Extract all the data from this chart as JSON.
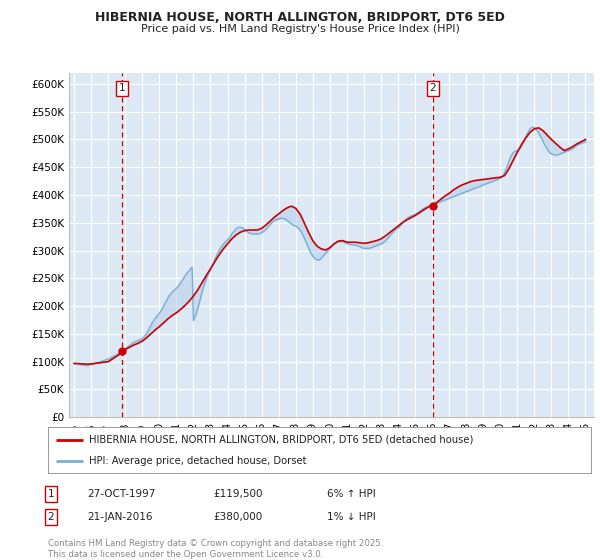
{
  "title1": "HIBERNIA HOUSE, NORTH ALLINGTON, BRIDPORT, DT6 5ED",
  "title2": "Price paid vs. HM Land Registry's House Price Index (HPI)",
  "ylim": [
    0,
    620000
  ],
  "yticks": [
    0,
    50000,
    100000,
    150000,
    200000,
    250000,
    300000,
    350000,
    400000,
    450000,
    500000,
    550000,
    600000
  ],
  "ytick_labels": [
    "£0",
    "£50K",
    "£100K",
    "£150K",
    "£200K",
    "£250K",
    "£300K",
    "£350K",
    "£400K",
    "£450K",
    "£500K",
    "£550K",
    "£600K"
  ],
  "xlim_start": 1994.7,
  "xlim_end": 2025.5,
  "plot_bg": "#dce9f5",
  "grid_color": "#ffffff",
  "red_line_color": "#cc0000",
  "blue_line_color": "#7bafd4",
  "fill_color": "#b8d0e8",
  "vline_color": "#cc0000",
  "marker1_x": 1997.82,
  "marker1_y": 119500,
  "marker2_x": 2016.05,
  "marker2_y": 380000,
  "annotation1": {
    "label": "1",
    "x": 1997.82,
    "date": "27-OCT-1997",
    "price": "£119,500",
    "hpi": "6% ↑ HPI"
  },
  "annotation2": {
    "label": "2",
    "x": 2016.05,
    "date": "21-JAN-2016",
    "price": "£380,000",
    "hpi": "1% ↓ HPI"
  },
  "legend_line1": "HIBERNIA HOUSE, NORTH ALLINGTON, BRIDPORT, DT6 5ED (detached house)",
  "legend_line2": "HPI: Average price, detached house, Dorset",
  "footer": "Contains HM Land Registry data © Crown copyright and database right 2025.\nThis data is licensed under the Open Government Licence v3.0.",
  "hpi_years": [
    1995.0,
    1995.08,
    1995.17,
    1995.25,
    1995.33,
    1995.42,
    1995.5,
    1995.58,
    1995.67,
    1995.75,
    1995.83,
    1995.92,
    1996.0,
    1996.08,
    1996.17,
    1996.25,
    1996.33,
    1996.42,
    1996.5,
    1996.58,
    1996.67,
    1996.75,
    1996.83,
    1996.92,
    1997.0,
    1997.08,
    1997.17,
    1997.25,
    1997.33,
    1997.42,
    1997.5,
    1997.58,
    1997.67,
    1997.75,
    1997.83,
    1997.92,
    1998.0,
    1998.08,
    1998.17,
    1998.25,
    1998.33,
    1998.42,
    1998.5,
    1998.58,
    1998.67,
    1998.75,
    1998.83,
    1998.92,
    1999.0,
    1999.08,
    1999.17,
    1999.25,
    1999.33,
    1999.42,
    1999.5,
    1999.58,
    1999.67,
    1999.75,
    1999.83,
    1999.92,
    2000.0,
    2000.08,
    2000.17,
    2000.25,
    2000.33,
    2000.42,
    2000.5,
    2000.58,
    2000.67,
    2000.75,
    2000.83,
    2000.92,
    2001.0,
    2001.08,
    2001.17,
    2001.25,
    2001.33,
    2001.42,
    2001.5,
    2001.58,
    2001.67,
    2001.75,
    2001.83,
    2001.92,
    2002.0,
    2002.08,
    2002.17,
    2002.25,
    2002.33,
    2002.42,
    2002.5,
    2002.58,
    2002.67,
    2002.75,
    2002.83,
    2002.92,
    2003.0,
    2003.08,
    2003.17,
    2003.25,
    2003.33,
    2003.42,
    2003.5,
    2003.58,
    2003.67,
    2003.75,
    2003.83,
    2003.92,
    2004.0,
    2004.08,
    2004.17,
    2004.25,
    2004.33,
    2004.42,
    2004.5,
    2004.58,
    2004.67,
    2004.75,
    2004.83,
    2004.92,
    2005.0,
    2005.08,
    2005.17,
    2005.25,
    2005.33,
    2005.42,
    2005.5,
    2005.58,
    2005.67,
    2005.75,
    2005.83,
    2005.92,
    2006.0,
    2006.08,
    2006.17,
    2006.25,
    2006.33,
    2006.42,
    2006.5,
    2006.58,
    2006.67,
    2006.75,
    2006.83,
    2006.92,
    2007.0,
    2007.08,
    2007.17,
    2007.25,
    2007.33,
    2007.42,
    2007.5,
    2007.58,
    2007.67,
    2007.75,
    2007.83,
    2007.92,
    2008.0,
    2008.08,
    2008.17,
    2008.25,
    2008.33,
    2008.42,
    2008.5,
    2008.58,
    2008.67,
    2008.75,
    2008.83,
    2008.92,
    2009.0,
    2009.08,
    2009.17,
    2009.25,
    2009.33,
    2009.42,
    2009.5,
    2009.58,
    2009.67,
    2009.75,
    2009.83,
    2009.92,
    2010.0,
    2010.08,
    2010.17,
    2010.25,
    2010.33,
    2010.42,
    2010.5,
    2010.58,
    2010.67,
    2010.75,
    2010.83,
    2010.92,
    2011.0,
    2011.08,
    2011.17,
    2011.25,
    2011.33,
    2011.42,
    2011.5,
    2011.58,
    2011.67,
    2011.75,
    2011.83,
    2011.92,
    2012.0,
    2012.08,
    2012.17,
    2012.25,
    2012.33,
    2012.42,
    2012.5,
    2012.58,
    2012.67,
    2012.75,
    2012.83,
    2012.92,
    2013.0,
    2013.08,
    2013.17,
    2013.25,
    2013.33,
    2013.42,
    2013.5,
    2013.58,
    2013.67,
    2013.75,
    2013.83,
    2013.92,
    2014.0,
    2014.08,
    2014.17,
    2014.25,
    2014.33,
    2014.42,
    2014.5,
    2014.58,
    2014.67,
    2014.75,
    2014.83,
    2014.92,
    2015.0,
    2015.08,
    2015.17,
    2015.25,
    2015.33,
    2015.42,
    2015.5,
    2015.58,
    2015.67,
    2015.75,
    2015.83,
    2015.92,
    2016.0,
    2016.08,
    2016.17,
    2016.25,
    2016.33,
    2016.42,
    2016.5,
    2016.58,
    2016.67,
    2016.75,
    2016.83,
    2016.92,
    2017.0,
    2017.08,
    2017.17,
    2017.25,
    2017.33,
    2017.42,
    2017.5,
    2017.58,
    2017.67,
    2017.75,
    2017.83,
    2017.92,
    2018.0,
    2018.08,
    2018.17,
    2018.25,
    2018.33,
    2018.42,
    2018.5,
    2018.58,
    2018.67,
    2018.75,
    2018.83,
    2018.92,
    2019.0,
    2019.08,
    2019.17,
    2019.25,
    2019.33,
    2019.42,
    2019.5,
    2019.58,
    2019.67,
    2019.75,
    2019.83,
    2019.92,
    2020.0,
    2020.08,
    2020.17,
    2020.25,
    2020.33,
    2020.42,
    2020.5,
    2020.58,
    2020.67,
    2020.75,
    2020.83,
    2020.92,
    2021.0,
    2021.08,
    2021.17,
    2021.25,
    2021.33,
    2021.42,
    2021.5,
    2021.58,
    2021.67,
    2021.75,
    2021.83,
    2021.92,
    2022.0,
    2022.08,
    2022.17,
    2022.25,
    2022.33,
    2022.42,
    2022.5,
    2022.58,
    2022.67,
    2022.75,
    2022.83,
    2022.92,
    2023.0,
    2023.08,
    2023.17,
    2023.25,
    2023.33,
    2023.42,
    2023.5,
    2023.58,
    2023.67,
    2023.75,
    2023.83,
    2023.92,
    2024.0,
    2024.08,
    2024.17,
    2024.25,
    2024.33,
    2024.42,
    2024.5,
    2024.58,
    2024.67,
    2024.75,
    2024.83,
    2024.92,
    2025.0
  ],
  "hpi_vals": [
    96000,
    96000,
    96000,
    95500,
    95000,
    94500,
    94000,
    93500,
    93000,
    93000,
    93500,
    94000,
    95000,
    95500,
    96000,
    97000,
    97500,
    98000,
    99000,
    100000,
    101000,
    102000,
    103000,
    104000,
    105000,
    106000,
    107000,
    109000,
    110000,
    111000,
    112000,
    114000,
    116000,
    118000,
    119500,
    121000,
    123000,
    125000,
    127000,
    129000,
    131000,
    133000,
    135000,
    136000,
    137000,
    138000,
    139000,
    140000,
    142000,
    144000,
    147000,
    151000,
    155000,
    160000,
    165000,
    170000,
    174000,
    178000,
    181000,
    184000,
    187000,
    191000,
    195000,
    200000,
    205000,
    210000,
    215000,
    219000,
    222000,
    225000,
    228000,
    230000,
    232000,
    235000,
    238000,
    242000,
    246000,
    250000,
    254000,
    258000,
    261000,
    264000,
    267000,
    270000,
    174000,
    180000,
    187000,
    196000,
    205000,
    215000,
    225000,
    234000,
    242000,
    249000,
    255000,
    261000,
    266000,
    271000,
    277000,
    283000,
    289000,
    295000,
    300000,
    304000,
    308000,
    311000,
    314000,
    317000,
    319000,
    322000,
    326000,
    330000,
    333000,
    336000,
    339000,
    341000,
    342000,
    342000,
    341000,
    340000,
    338000,
    336000,
    334000,
    332000,
    331000,
    330000,
    330000,
    330000,
    330000,
    330000,
    330000,
    331000,
    332000,
    334000,
    336000,
    338000,
    341000,
    344000,
    347000,
    350000,
    352000,
    354000,
    355000,
    356000,
    357000,
    358000,
    358000,
    358000,
    357000,
    356000,
    354000,
    352000,
    350000,
    348000,
    346000,
    345000,
    344000,
    342000,
    340000,
    337000,
    333000,
    328000,
    323000,
    317000,
    311000,
    305000,
    299000,
    294000,
    290000,
    287000,
    285000,
    283000,
    283000,
    284000,
    286000,
    289000,
    292000,
    295000,
    298000,
    301000,
    304000,
    307000,
    310000,
    312000,
    314000,
    315000,
    316000,
    316000,
    316000,
    316000,
    315000,
    314000,
    313000,
    312000,
    311000,
    311000,
    310000,
    310000,
    310000,
    309000,
    308000,
    307000,
    306000,
    305000,
    304000,
    304000,
    304000,
    304000,
    304000,
    305000,
    306000,
    307000,
    308000,
    309000,
    310000,
    311000,
    312000,
    313000,
    315000,
    317000,
    320000,
    323000,
    326000,
    329000,
    332000,
    335000,
    337000,
    339000,
    341000,
    343000,
    346000,
    349000,
    352000,
    355000,
    357000,
    359000,
    361000,
    362000,
    363000,
    364000,
    365000,
    366000,
    368000,
    370000,
    372000,
    374000,
    376000,
    377000,
    378000,
    379000,
    380000,
    381000,
    382000,
    383000,
    384000,
    385000,
    386000,
    387000,
    388000,
    389000,
    390000,
    391000,
    392000,
    393000,
    394000,
    395000,
    396000,
    397000,
    398000,
    399000,
    400000,
    401000,
    402000,
    403000,
    404000,
    405000,
    406000,
    407000,
    408000,
    409000,
    410000,
    411000,
    412000,
    413000,
    414000,
    415000,
    416000,
    417000,
    418000,
    419000,
    420000,
    421000,
    422000,
    423000,
    424000,
    425000,
    426000,
    427000,
    428000,
    429000,
    430000,
    432000,
    435000,
    440000,
    446000,
    453000,
    460000,
    467000,
    472000,
    476000,
    478000,
    479000,
    480000,
    482000,
    484000,
    488000,
    493000,
    498000,
    504000,
    510000,
    515000,
    519000,
    521000,
    522000,
    521000,
    519000,
    516000,
    512000,
    507000,
    502000,
    497000,
    492000,
    487000,
    483000,
    479000,
    476000,
    474000,
    473000,
    472000,
    472000,
    472000,
    473000,
    474000,
    475000,
    476000,
    477000,
    478000,
    479000,
    480000,
    481000,
    482000,
    484000,
    486000,
    488000,
    490000,
    491000,
    492000,
    493000,
    494000,
    495000,
    496000
  ],
  "house_years": [
    1995.0,
    1995.25,
    1995.5,
    1995.75,
    1996.0,
    1996.25,
    1996.5,
    1996.75,
    1997.0,
    1997.25,
    1997.5,
    1997.75,
    1997.82,
    1998.0,
    1998.25,
    1998.5,
    1998.75,
    1999.0,
    1999.25,
    1999.5,
    1999.75,
    2000.0,
    2000.25,
    2000.5,
    2000.75,
    2001.0,
    2001.25,
    2001.5,
    2001.75,
    2002.0,
    2002.25,
    2002.5,
    2002.75,
    2003.0,
    2003.25,
    2003.5,
    2003.75,
    2004.0,
    2004.25,
    2004.5,
    2004.75,
    2005.0,
    2005.25,
    2005.5,
    2005.75,
    2006.0,
    2006.25,
    2006.5,
    2006.75,
    2007.0,
    2007.25,
    2007.5,
    2007.75,
    2008.0,
    2008.25,
    2008.5,
    2008.75,
    2009.0,
    2009.25,
    2009.5,
    2009.75,
    2010.0,
    2010.25,
    2010.5,
    2010.75,
    2011.0,
    2011.25,
    2011.5,
    2011.75,
    2012.0,
    2012.25,
    2012.5,
    2012.75,
    2013.0,
    2013.25,
    2013.5,
    2013.75,
    2014.0,
    2014.25,
    2014.5,
    2014.75,
    2015.0,
    2015.25,
    2015.5,
    2015.75,
    2016.0,
    2016.05,
    2016.25,
    2016.5,
    2016.75,
    2017.0,
    2017.25,
    2017.5,
    2017.75,
    2018.0,
    2018.25,
    2018.5,
    2018.75,
    2019.0,
    2019.25,
    2019.5,
    2019.75,
    2020.0,
    2020.25,
    2020.5,
    2020.75,
    2021.0,
    2021.25,
    2021.5,
    2021.75,
    2022.0,
    2022.25,
    2022.5,
    2022.75,
    2023.0,
    2023.25,
    2023.5,
    2023.75,
    2024.0,
    2024.25,
    2024.5,
    2024.75,
    2025.0
  ],
  "house_vals": [
    97000,
    96500,
    96000,
    95500,
    96000,
    97000,
    98000,
    99000,
    100000,
    105000,
    110000,
    115000,
    119500,
    122000,
    126000,
    130000,
    133000,
    137000,
    143000,
    150000,
    157000,
    163000,
    170000,
    177000,
    183000,
    188000,
    194000,
    201000,
    209000,
    218000,
    229000,
    242000,
    255000,
    267000,
    280000,
    292000,
    303000,
    312000,
    321000,
    328000,
    333000,
    336000,
    337000,
    337000,
    337000,
    340000,
    346000,
    353000,
    360000,
    366000,
    372000,
    377000,
    380000,
    376000,
    366000,
    350000,
    333000,
    318000,
    308000,
    303000,
    301000,
    305000,
    312000,
    317000,
    318000,
    315000,
    315000,
    315000,
    314000,
    313000,
    314000,
    316000,
    318000,
    321000,
    326000,
    332000,
    338000,
    344000,
    350000,
    355000,
    359000,
    363000,
    368000,
    373000,
    378000,
    382000,
    380000,
    386000,
    392000,
    398000,
    403000,
    409000,
    414000,
    418000,
    421000,
    424000,
    426000,
    427000,
    428000,
    429000,
    430000,
    431000,
    432000,
    435000,
    447000,
    462000,
    477000,
    491000,
    503000,
    513000,
    519000,
    521000,
    516000,
    508000,
    500000,
    493000,
    486000,
    480000,
    483000,
    487000,
    492000,
    496000,
    500000
  ]
}
